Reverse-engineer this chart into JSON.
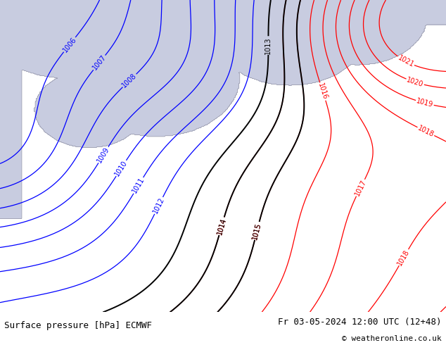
{
  "title_left": "Surface pressure [hPa] ECMWF",
  "title_right": "Fr 03-05-2024 12:00 UTC (12+48)",
  "copyright": "© weatheronline.co.uk",
  "bg_color": "#b0d870",
  "sea_color_main": "#c8cce0",
  "sea_color_light": "#d0d4e4",
  "fig_width": 6.34,
  "fig_height": 4.9,
  "dpi": 100,
  "bottom_bar_color": "#d8d8d8",
  "title_fontsize": 9,
  "copyright_fontsize": 8,
  "contour_label_fontsize": 7
}
